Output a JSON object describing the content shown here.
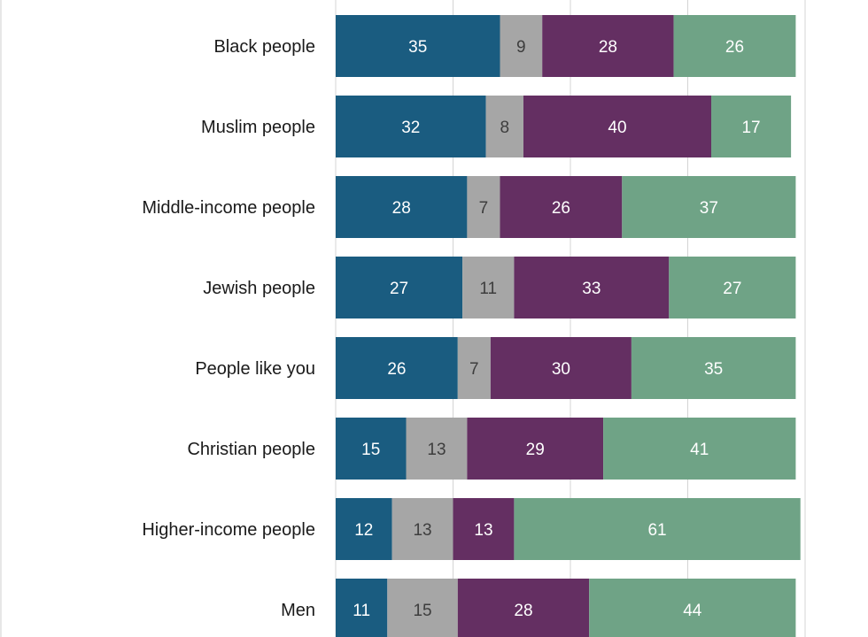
{
  "chart_data": {
    "type": "bar",
    "orientation": "horizontal",
    "stacked": true,
    "categories": [
      "Black people",
      "Muslim people",
      "Middle-income people",
      "Jewish people",
      "People like you",
      "Christian people",
      "Higher-income people",
      "Men"
    ],
    "series": [
      {
        "values": [
          35,
          32,
          28,
          27,
          26,
          15,
          12,
          11
        ],
        "color": "#1a5c80",
        "label_color": "#ffffff"
      },
      {
        "values": [
          9,
          8,
          7,
          11,
          7,
          13,
          13,
          15
        ],
        "color": "#a6a6a6",
        "label_color": "#3d3d3d"
      },
      {
        "values": [
          28,
          40,
          26,
          33,
          30,
          29,
          13,
          28
        ],
        "color": "#642f62",
        "label_color": "#ffffff"
      },
      {
        "values": [
          26,
          17,
          37,
          27,
          35,
          41,
          61,
          44
        ],
        "color": "#6fa386",
        "label_color": "#ffffff"
      }
    ],
    "xlim": [
      0,
      100
    ],
    "grid": true,
    "legend": "none"
  }
}
